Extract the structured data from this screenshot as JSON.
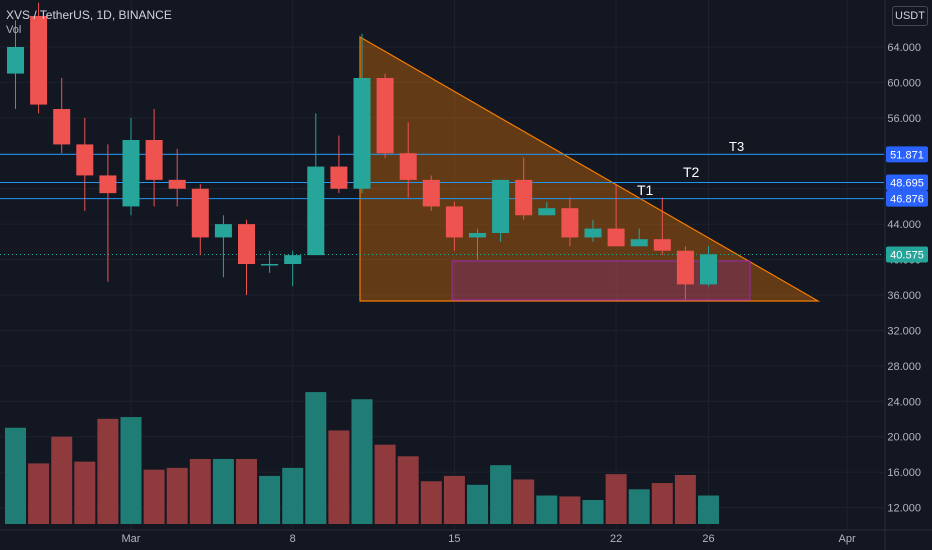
{
  "header": {
    "symbol": "XVS / TetherUS, 1D, BINANCE",
    "volume_label": "Vol",
    "currency": "USDT"
  },
  "colors": {
    "up": "#26a69a",
    "down": "#ef5350",
    "up_vol": "#1f7d76",
    "down_vol": "#8f3a3d",
    "hline": "#2196f3",
    "triangle": "#f57c00",
    "box": "#9c27b0",
    "bg": "#131722",
    "grid": "#1e222d",
    "axis_text": "#b2b5be"
  },
  "targets": [
    "T1",
    "T2",
    "T3"
  ],
  "price_labels": [
    {
      "price": 51.871,
      "label": "51.871",
      "color": "#2962ff"
    },
    {
      "price": 48.695,
      "label": "48.695",
      "color": "#2962ff"
    },
    {
      "price": 46.876,
      "label": "46.876",
      "color": "#2962ff"
    },
    {
      "price": 40.575,
      "label": "40.575",
      "color": "#26a69a"
    }
  ],
  "chart_data": {
    "type": "candlestick",
    "symbol": "XVS / TetherUS",
    "interval": "1D",
    "exchange": "BINANCE",
    "price_axis_ticks": [
      12,
      16,
      20,
      24,
      28,
      32,
      36,
      40,
      44,
      48,
      52,
      56,
      60,
      64
    ],
    "price_tick_labels": [
      "12.000",
      "16.000",
      "20.000",
      "24.000",
      "28.000",
      "32.000",
      "36.000",
      "40.000",
      "44.000",
      "48.000",
      "52.000",
      "56.000",
      "60.000",
      "64.000"
    ],
    "time_axis_labels": [
      "Mar",
      "8",
      "15",
      "22",
      "26",
      "Apr"
    ],
    "time_axis_index": [
      5,
      12,
      19,
      26,
      30,
      36
    ],
    "volume_scale_ticks": [
      12,
      16,
      20,
      24
    ],
    "horizontal_lines": [
      51.871,
      48.695,
      46.876
    ],
    "last_price": 40.575,
    "candles": [
      {
        "o": 61.0,
        "h": 67.0,
        "l": 57.0,
        "c": 64.0
      },
      {
        "o": 67.5,
        "h": 69.0,
        "l": 56.5,
        "c": 57.5
      },
      {
        "o": 57.0,
        "h": 60.5,
        "l": 52.0,
        "c": 53.0
      },
      {
        "o": 53.0,
        "h": 56.0,
        "l": 45.5,
        "c": 49.5
      },
      {
        "o": 49.5,
        "h": 53.0,
        "l": 37.5,
        "c": 47.5
      },
      {
        "o": 46.0,
        "h": 56.0,
        "l": 45.0,
        "c": 53.5
      },
      {
        "o": 53.5,
        "h": 57.0,
        "l": 46.0,
        "c": 49.0
      },
      {
        "o": 49.0,
        "h": 52.5,
        "l": 46.0,
        "c": 48.0
      },
      {
        "o": 48.0,
        "h": 48.5,
        "l": 40.5,
        "c": 42.5
      },
      {
        "o": 42.5,
        "h": 45.0,
        "l": 38.0,
        "c": 44.0
      },
      {
        "o": 44.0,
        "h": 44.5,
        "l": 36.0,
        "c": 39.5
      },
      {
        "o": 39.5,
        "h": 41.0,
        "l": 38.5,
        "c": 39.5
      },
      {
        "o": 39.5,
        "h": 41.0,
        "l": 37.0,
        "c": 40.5
      },
      {
        "o": 40.5,
        "h": 56.5,
        "l": 40.5,
        "c": 50.5
      },
      {
        "o": 50.5,
        "h": 54.0,
        "l": 47.5,
        "c": 48.0
      },
      {
        "o": 48.0,
        "h": 65.5,
        "l": 47.5,
        "c": 60.5
      },
      {
        "o": 60.5,
        "h": 61.0,
        "l": 51.5,
        "c": 52.0
      },
      {
        "o": 52.0,
        "h": 55.5,
        "l": 47.0,
        "c": 49.0
      },
      {
        "o": 49.0,
        "h": 49.5,
        "l": 45.5,
        "c": 46.0
      },
      {
        "o": 46.0,
        "h": 46.5,
        "l": 41.0,
        "c": 42.5
      },
      {
        "o": 42.5,
        "h": 43.5,
        "l": 40.0,
        "c": 43.0
      },
      {
        "o": 43.0,
        "h": 49.0,
        "l": 42.0,
        "c": 49.0
      },
      {
        "o": 49.0,
        "h": 51.5,
        "l": 44.5,
        "c": 45.0
      },
      {
        "o": 45.0,
        "h": 46.5,
        "l": 45.0,
        "c": 45.8
      },
      {
        "o": 45.8,
        "h": 47.0,
        "l": 41.5,
        "c": 42.5
      },
      {
        "o": 42.5,
        "h": 44.5,
        "l": 42.0,
        "c": 43.5
      },
      {
        "o": 43.5,
        "h": 48.5,
        "l": 41.5,
        "c": 41.5
      },
      {
        "o": 41.5,
        "h": 43.5,
        "l": 41.5,
        "c": 42.3
      },
      {
        "o": 42.3,
        "h": 47.0,
        "l": 40.5,
        "c": 41.0
      },
      {
        "o": 41.0,
        "h": 41.5,
        "l": 35.5,
        "c": 37.2
      },
      {
        "o": 37.2,
        "h": 41.5,
        "l": 37.0,
        "c": 40.6
      }
    ],
    "volumes": [
      21.0,
      17.0,
      20.0,
      17.2,
      22.0,
      22.2,
      16.3,
      16.5,
      17.5,
      17.5,
      17.5,
      15.6,
      16.5,
      25.0,
      20.7,
      24.2,
      19.1,
      17.8,
      15.0,
      15.6,
      14.6,
      16.8,
      15.2,
      13.4,
      13.3,
      12.9,
      15.8,
      14.1,
      14.8,
      15.7,
      13.4
    ]
  }
}
